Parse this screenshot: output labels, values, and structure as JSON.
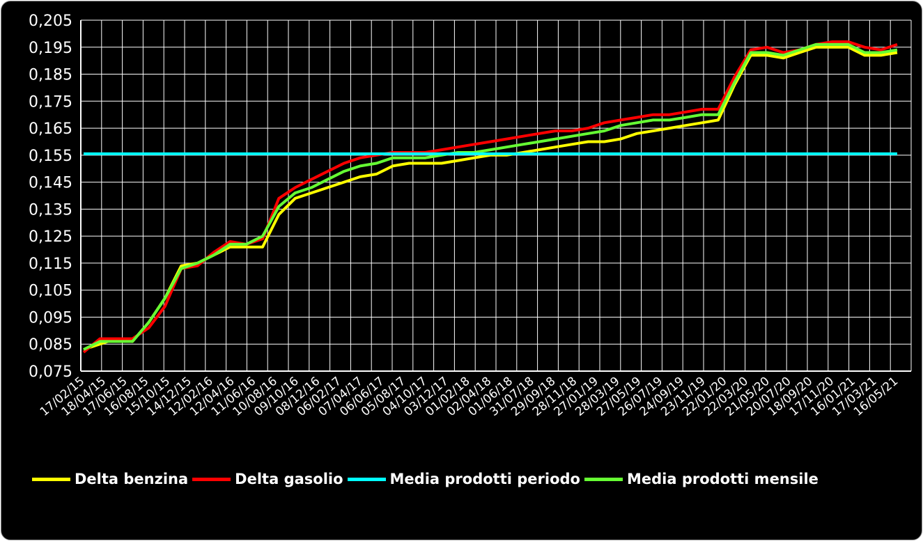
{
  "chart_data": {
    "type": "line",
    "title": "",
    "xlabel": "",
    "ylabel": "",
    "ylim": [
      0.075,
      0.205
    ],
    "yticks": [
      "0,075",
      "0,085",
      "0,095",
      "0,105",
      "0,115",
      "0,125",
      "0,135",
      "0,145",
      "0,155",
      "0,165",
      "0,175",
      "0,185",
      "0,195",
      "0,205"
    ],
    "x_tick_labels": [
      "17/02/15",
      "18/04/15",
      "17/06/15",
      "16/08/15",
      "15/10/15",
      "14/12/15",
      "12/02/16",
      "12/04/16",
      "11/06/16",
      "10/08/16",
      "09/10/16",
      "08/12/16",
      "06/02/17",
      "07/04/17",
      "06/06/17",
      "05/08/17",
      "04/10/17",
      "03/12/17",
      "01/02/18",
      "02/04/18",
      "01/06/18",
      "31/07/18",
      "29/09/18",
      "28/11/18",
      "27/01/19",
      "28/03/19",
      "27/05/19",
      "26/07/19",
      "24/09/19",
      "23/11/19",
      "22/01/20",
      "22/03/20",
      "21/05/20",
      "20/07/20",
      "18/09/20",
      "17/11/20",
      "16/01/21",
      "17/03/21",
      "16/05/21"
    ],
    "grid": true,
    "legend_position": "bottom",
    "series": [
      {
        "name": "Delta benzina",
        "color": "#ffff00",
        "values": [
          0.083,
          0.085,
          0.087,
          0.086,
          0.093,
          0.102,
          0.114,
          0.115,
          0.118,
          0.121,
          0.121,
          0.121,
          0.133,
          0.139,
          0.141,
          0.143,
          0.145,
          0.147,
          0.148,
          0.151,
          0.152,
          0.152,
          0.152,
          0.153,
          0.154,
          0.155,
          0.155,
          0.156,
          0.157,
          0.158,
          0.159,
          0.16,
          0.16,
          0.161,
          0.163,
          0.164,
          0.165,
          0.166,
          0.167,
          0.168,
          0.181,
          0.192,
          0.192,
          0.191,
          0.193,
          0.195,
          0.195,
          0.195,
          0.192,
          0.192,
          0.193
        ]
      },
      {
        "name": "Delta gasolio",
        "color": "#ff0000",
        "values": [
          0.082,
          0.087,
          0.087,
          0.087,
          0.091,
          0.099,
          0.113,
          0.114,
          0.119,
          0.123,
          0.122,
          0.124,
          0.139,
          0.143,
          0.146,
          0.149,
          0.152,
          0.154,
          0.155,
          0.156,
          0.156,
          0.156,
          0.157,
          0.158,
          0.159,
          0.16,
          0.161,
          0.162,
          0.163,
          0.164,
          0.164,
          0.165,
          0.167,
          0.168,
          0.169,
          0.17,
          0.17,
          0.171,
          0.172,
          0.172,
          0.184,
          0.194,
          0.195,
          0.193,
          0.194,
          0.196,
          0.197,
          0.197,
          0.195,
          0.194,
          0.196
        ]
      },
      {
        "name": "Media prodotti periodo",
        "color": "#00ffff",
        "values": [
          0.1555,
          0.1555,
          0.1555,
          0.1555,
          0.1555,
          0.1555,
          0.1555,
          0.1555,
          0.1555,
          0.1555,
          0.1555,
          0.1555,
          0.1555,
          0.1555,
          0.1555,
          0.1555,
          0.1555,
          0.1555,
          0.1555,
          0.1555,
          0.1555,
          0.1555,
          0.1555,
          0.1555,
          0.1555,
          0.1555,
          0.1555,
          0.1555,
          0.1555,
          0.1555,
          0.1555,
          0.1555,
          0.1555,
          0.1555,
          0.1555,
          0.1555,
          0.1555,
          0.1555,
          0.1555,
          0.1555,
          0.1555,
          0.1555,
          0.1555,
          0.1555,
          0.1555,
          0.1555,
          0.1555,
          0.1555,
          0.1555,
          0.1555,
          0.1555
        ]
      },
      {
        "name": "Media prodotti mensile",
        "color": "#66ff33",
        "values": [
          0.083,
          0.086,
          0.086,
          0.086,
          0.093,
          0.102,
          0.113,
          0.115,
          0.118,
          0.122,
          0.122,
          0.125,
          0.136,
          0.141,
          0.143,
          0.146,
          0.149,
          0.151,
          0.152,
          0.154,
          0.154,
          0.154,
          0.155,
          0.156,
          0.156,
          0.157,
          0.158,
          0.159,
          0.16,
          0.161,
          0.162,
          0.163,
          0.164,
          0.166,
          0.167,
          0.168,
          0.168,
          0.169,
          0.17,
          0.17,
          0.182,
          0.193,
          0.193,
          0.192,
          0.194,
          0.196,
          0.196,
          0.196,
          0.193,
          0.193,
          0.194
        ]
      }
    ]
  }
}
